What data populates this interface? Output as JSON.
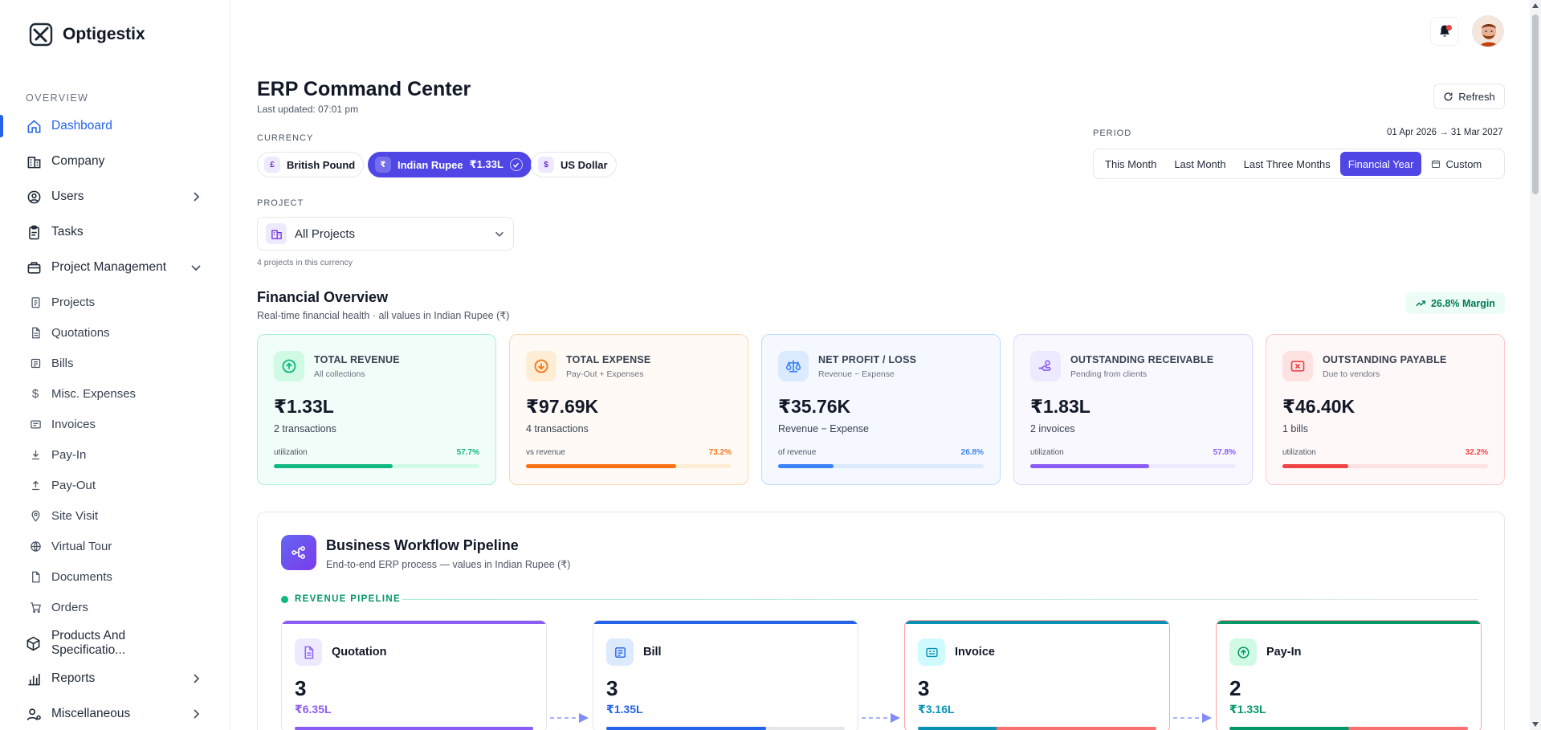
{
  "brand": {
    "name": "Optigestix"
  },
  "sidebar": {
    "section_label": "OVERVIEW",
    "items": [
      {
        "label": "Dashboard",
        "icon": "home-icon",
        "active": true
      },
      {
        "label": "Company",
        "icon": "building-icon"
      },
      {
        "label": "Users",
        "icon": "user-circle-icon",
        "chevron": "right"
      },
      {
        "label": "Tasks",
        "icon": "clipboard-icon"
      },
      {
        "label": "Project Management",
        "icon": "briefcase-icon",
        "chevron": "down"
      }
    ],
    "sub_items": [
      {
        "label": "Projects",
        "icon": "clipboard-list-icon"
      },
      {
        "label": "Quotations",
        "icon": "file-icon"
      },
      {
        "label": "Bills",
        "icon": "receipt-icon"
      },
      {
        "label": "Misc. Expenses",
        "icon": "dollar-icon"
      },
      {
        "label": "Invoices",
        "icon": "invoice-icon"
      },
      {
        "label": "Pay-In",
        "icon": "arrow-down-box-icon"
      },
      {
        "label": "Pay-Out",
        "icon": "arrow-up-box-icon"
      },
      {
        "label": "Site Visit",
        "icon": "map-pin-icon"
      },
      {
        "label": "Virtual Tour",
        "icon": "globe-icon"
      },
      {
        "label": "Documents",
        "icon": "document-icon"
      },
      {
        "label": "Orders",
        "icon": "cart-icon"
      }
    ],
    "bottom_items": [
      {
        "label": "Products And Specificatio...",
        "icon": "box-icon"
      },
      {
        "label": "Reports",
        "icon": "bar-chart-icon",
        "chevron": "right"
      },
      {
        "label": "Miscellaneous",
        "icon": "users-cog-icon",
        "chevron": "right"
      }
    ]
  },
  "header": {
    "title": "ERP Command Center",
    "last_updated": "Last updated: 07:01 pm",
    "refresh_label": "Refresh"
  },
  "currency": {
    "label": "CURRENCY",
    "options": [
      {
        "symbol": "£",
        "label": "British Pound",
        "selected": false
      },
      {
        "symbol": "₹",
        "label": "Indian Rupee",
        "amount": "₹1.33L",
        "selected": true
      },
      {
        "symbol": "$",
        "label": "US Dollar",
        "selected": false
      }
    ]
  },
  "project": {
    "label": "PROJECT",
    "selected": "All Projects",
    "hint": "4 projects in this currency"
  },
  "period": {
    "label": "PERIOD",
    "range": "01 Apr 2026 → 31 Mar 2027",
    "options": [
      "This Month",
      "Last Month",
      "Last Three Months",
      "Financial Year",
      "Custom"
    ],
    "selected": "Financial Year"
  },
  "financial_overview": {
    "title": "Financial Overview",
    "subtitle": "Real-time financial health · all values in Indian Rupee (₹)",
    "margin_badge": "26.8% Margin",
    "cards": [
      {
        "title": "TOTAL REVENUE",
        "subtitle": "All collections",
        "value": "₹1.33L",
        "desc": "2 transactions",
        "bar_label": "utilization",
        "percent_text": "57.7%",
        "percent": 57.7,
        "accent": "#10b981",
        "bg": "#f0fdf8",
        "border": "#a7f3d0",
        "track": "#d1fae5",
        "icon": "arrow-up-circle-icon"
      },
      {
        "title": "TOTAL EXPENSE",
        "subtitle": "Pay-Out + Expenses",
        "value": "₹97.69K",
        "desc": "4 transactions",
        "bar_label": "vs revenue",
        "percent_text": "73.2%",
        "percent": 73.2,
        "accent": "#f97316",
        "bg": "#fffaf5",
        "border": "#fed7aa",
        "track": "#ffedd5",
        "icon": "arrow-down-circle-icon"
      },
      {
        "title": "NET PROFIT / LOSS",
        "subtitle": "Revenue − Expense",
        "value": "₹35.76K",
        "desc": "Revenue − Expense",
        "bar_label": "of revenue",
        "percent_text": "26.8%",
        "percent": 26.8,
        "accent": "#3b82f6",
        "bg": "#f5f9ff",
        "border": "#bfdbfe",
        "track": "#dbeafe",
        "icon": "scale-icon"
      },
      {
        "title": "OUTSTANDING RECEIVABLE",
        "subtitle": "Pending from clients",
        "value": "₹1.83L",
        "desc": "2 invoices",
        "bar_label": "utilization",
        "percent_text": "57.8%",
        "percent": 57.8,
        "accent": "#8b5cf6",
        "bg": "#faf8ff",
        "border": "#ddd6fe",
        "track": "#ede9fe",
        "icon": "hand-coin-icon"
      },
      {
        "title": "OUTSTANDING PAYABLE",
        "subtitle": "Due to vendors",
        "value": "₹46.40K",
        "desc": "1 bills",
        "bar_label": "utilization",
        "percent_text": "32.2%",
        "percent": 32.2,
        "accent": "#ef4444",
        "bg": "#fff8f8",
        "border": "#fecaca",
        "track": "#fee2e2",
        "icon": "x-box-icon"
      }
    ]
  },
  "pipeline": {
    "title": "Business Workflow Pipeline",
    "subtitle": "End-to-end ERP process — values in Indian Rupee (₹)",
    "section_label": "REVENUE PIPELINE",
    "stages": [
      {
        "name": "Quotation",
        "count": "3",
        "amount": "₹6.35L",
        "accent": "#8b5cf6",
        "icon_bg": "#ede9fe",
        "icon": "file-text-icon",
        "progress": 1.0,
        "border": "#e5e7eb",
        "secondary_fill": ""
      },
      {
        "name": "Bill",
        "count": "3",
        "amount": "₹1.35L",
        "accent": "#2563eb",
        "icon_bg": "#dbeafe",
        "icon": "receipt-icon",
        "progress": 0.67,
        "border": "#e5e7eb",
        "secondary_fill": ""
      },
      {
        "name": "Invoice",
        "count": "3",
        "amount": "₹3.16L",
        "accent": "#0891b2",
        "icon_bg": "#cffafe",
        "icon": "invoice-icon",
        "progress": 0.33,
        "border": "#fca5a5",
        "secondary_fill": "#f87171"
      },
      {
        "name": "Pay-In",
        "count": "2",
        "amount": "₹1.33L",
        "accent": "#059669",
        "icon_bg": "#d1fae5",
        "icon": "arrow-up-circle-icon",
        "progress": 0.5,
        "border": "#fca5a5",
        "secondary_fill": "#f87171"
      }
    ]
  }
}
